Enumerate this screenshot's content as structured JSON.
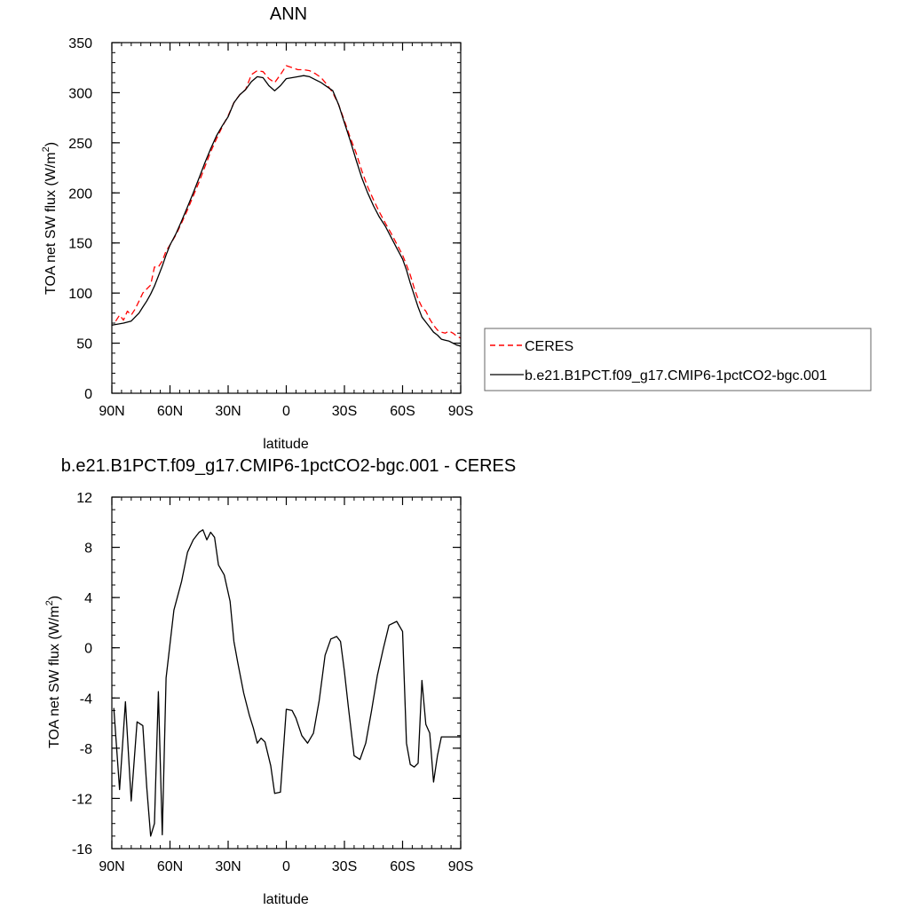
{
  "chart_data": [
    {
      "type": "line",
      "title": "ANN",
      "xlabel": "latitude",
      "ylabel_main": "TOA net SW flux (W/m",
      "ylabel_sup": "2",
      "ylabel_end": ")",
      "xlim": [
        -90,
        90
      ],
      "ylim": [
        0,
        350
      ],
      "x_ticks": [
        {
          "value": -90,
          "label": "90N"
        },
        {
          "value": -60,
          "label": "60N"
        },
        {
          "value": -30,
          "label": "30N"
        },
        {
          "value": 0,
          "label": "0"
        },
        {
          "value": 30,
          "label": "30S"
        },
        {
          "value": 60,
          "label": "60S"
        },
        {
          "value": 90,
          "label": "90S"
        }
      ],
      "y_ticks": [
        {
          "value": 0,
          "label": "0"
        },
        {
          "value": 50,
          "label": "50"
        },
        {
          "value": 100,
          "label": "100"
        },
        {
          "value": 150,
          "label": "150"
        },
        {
          "value": 200,
          "label": "200"
        },
        {
          "value": 250,
          "label": "250"
        },
        {
          "value": 300,
          "label": "300"
        },
        {
          "value": 350,
          "label": "350"
        }
      ],
      "legend": {
        "placement": "right",
        "entries": [
          {
            "name": "CERES",
            "color": "#ff0000",
            "dashed": true
          },
          {
            "name": "b.e21.B1PCT.f09_g17.CMIP6-1pctCO2-bgc.001",
            "color": "#000000",
            "dashed": false
          }
        ]
      },
      "series": [
        {
          "name": "CERES",
          "color": "#ff0000",
          "dashed": true,
          "x": [
            -88,
            -86,
            -84,
            -82,
            -80,
            -78,
            -76,
            -74,
            -72,
            -70,
            -68,
            -66,
            -64,
            -62,
            -60,
            -57,
            -54,
            -51,
            -48,
            -45,
            -42,
            -39,
            -36,
            -33,
            -30,
            -27,
            -24,
            -21,
            -18,
            -15,
            -12,
            -9,
            -6,
            -3,
            0,
            3,
            6,
            9,
            12,
            15,
            18,
            21,
            24,
            27,
            30,
            33,
            36,
            39,
            42,
            45,
            48,
            51,
            54,
            57,
            60,
            62,
            64,
            66,
            68,
            70,
            72,
            74,
            76,
            78,
            80,
            82,
            84,
            86,
            88,
            90
          ],
          "values": [
            72,
            78,
            73,
            82,
            78,
            84,
            92,
            100,
            104,
            108,
            126,
            126,
            132,
            142,
            148,
            158,
            170,
            183,
            197,
            211,
            226,
            241,
            254,
            266,
            277,
            290,
            298,
            303,
            318,
            322,
            321,
            314,
            310,
            318,
            327,
            325,
            323,
            323,
            322,
            319,
            315,
            308,
            300,
            288,
            272,
            255,
            240,
            222,
            206,
            193,
            181,
            170,
            160,
            149,
            138,
            128,
            118,
            105,
            94,
            86,
            82,
            74,
            68,
            63,
            61,
            60,
            62,
            60,
            57,
            55
          ]
        },
        {
          "name": "b.e21.B1PCT.f09_g17.CMIP6-1pctCO2-bgc.001",
          "color": "#000000",
          "dashed": false,
          "x": [
            -90,
            -84,
            -80,
            -78,
            -76,
            -74,
            -72,
            -70,
            -68,
            -66,
            -64,
            -62,
            -60,
            -57,
            -54,
            -51,
            -48,
            -45,
            -42,
            -39,
            -36,
            -33,
            -30,
            -27,
            -24,
            -21,
            -18,
            -15,
            -12,
            -9,
            -6,
            -3,
            0,
            3,
            6,
            9,
            12,
            15,
            18,
            21,
            24,
            27,
            30,
            33,
            36,
            39,
            42,
            45,
            48,
            51,
            54,
            57,
            60,
            62,
            64,
            66,
            68,
            70,
            72,
            74,
            76,
            78,
            80,
            82,
            84,
            86,
            88,
            90
          ],
          "values": [
            68,
            70,
            72,
            76,
            80,
            86,
            92,
            99,
            107,
            117,
            127,
            138,
            148,
            159,
            172,
            186,
            200,
            215,
            230,
            244,
            257,
            267,
            276,
            290,
            298,
            303,
            311,
            316,
            315,
            307,
            302,
            307,
            314,
            315,
            316,
            317,
            316,
            313,
            310,
            306,
            302,
            288,
            270,
            252,
            233,
            215,
            200,
            187,
            176,
            167,
            156,
            145,
            134,
            123,
            110,
            98,
            86,
            76,
            71,
            66,
            61,
            58,
            54,
            53,
            52,
            50,
            48,
            47
          ]
        }
      ]
    },
    {
      "type": "line",
      "title": "b.e21.B1PCT.f09_g17.CMIP6-1pctCO2-bgc.001 - CERES",
      "xlabel": "latitude",
      "ylabel_main": "TOA net SW flux (W/m",
      "ylabel_sup": "2",
      "ylabel_end": ")",
      "xlim": [
        -90,
        90
      ],
      "ylim": [
        -16,
        12
      ],
      "x_ticks": [
        {
          "value": -90,
          "label": "90N"
        },
        {
          "value": -60,
          "label": "60N"
        },
        {
          "value": -30,
          "label": "30N"
        },
        {
          "value": 0,
          "label": "0"
        },
        {
          "value": 30,
          "label": "30S"
        },
        {
          "value": 60,
          "label": "60S"
        },
        {
          "value": 90,
          "label": "90S"
        }
      ],
      "y_ticks": [
        {
          "value": -16,
          "label": "-16"
        },
        {
          "value": -12,
          "label": "-12"
        },
        {
          "value": -8,
          "label": "-8"
        },
        {
          "value": -4,
          "label": "-4"
        },
        {
          "value": 0,
          "label": "0"
        },
        {
          "value": 4,
          "label": "4"
        },
        {
          "value": 8,
          "label": "8"
        },
        {
          "value": 12,
          "label": "12"
        }
      ],
      "series": [
        {
          "name": "b.e21.B1PCT.f09_g17.CMIP6-1pctCO2-bgc.001 - CERES",
          "color": "#000000",
          "dashed": false,
          "x": [
            -89,
            -86,
            -83,
            -80,
            -77,
            -74,
            -72,
            -70,
            -68,
            -66,
            -64,
            -62,
            -58,
            -54,
            -51,
            -48,
            -45,
            -43,
            -41,
            -39,
            -37,
            -35,
            -32,
            -29,
            -27,
            -25,
            -22,
            -19,
            -17,
            -15,
            -13,
            -11,
            -8,
            -6,
            -3,
            0,
            3,
            5,
            8,
            11,
            14,
            17,
            20,
            23,
            26,
            28,
            30,
            32,
            35,
            38,
            41,
            44,
            47,
            50,
            53,
            57,
            60,
            62,
            64,
            66,
            68,
            70,
            72,
            74,
            76,
            78,
            80,
            82,
            84,
            86,
            88,
            90
          ],
          "values": [
            -4.8,
            -11.3,
            -4.3,
            -12.2,
            -5.9,
            -6.2,
            -11.1,
            -15.0,
            -14.0,
            -3.5,
            -14.9,
            -2.4,
            3.0,
            5.3,
            7.6,
            8.6,
            9.2,
            9.4,
            8.6,
            9.2,
            8.8,
            6.6,
            5.8,
            3.7,
            0.5,
            -1.2,
            -3.6,
            -5.4,
            -6.4,
            -7.6,
            -7.2,
            -7.5,
            -9.4,
            -11.6,
            -11.5,
            -4.9,
            -5.0,
            -5.6,
            -7.0,
            -7.6,
            -6.8,
            -4.2,
            -0.6,
            0.7,
            0.9,
            0.5,
            -1.9,
            -4.7,
            -8.6,
            -8.9,
            -7.6,
            -5.0,
            -2.2,
            -0.1,
            1.8,
            2.1,
            1.3,
            -7.6,
            -9.3,
            -9.5,
            -9.2,
            -2.6,
            -6.1,
            -6.8,
            -10.7,
            -8.6,
            -7.1,
            -7.1,
            -7.1,
            -7.1,
            -7.1,
            -7.1
          ]
        }
      ]
    }
  ]
}
